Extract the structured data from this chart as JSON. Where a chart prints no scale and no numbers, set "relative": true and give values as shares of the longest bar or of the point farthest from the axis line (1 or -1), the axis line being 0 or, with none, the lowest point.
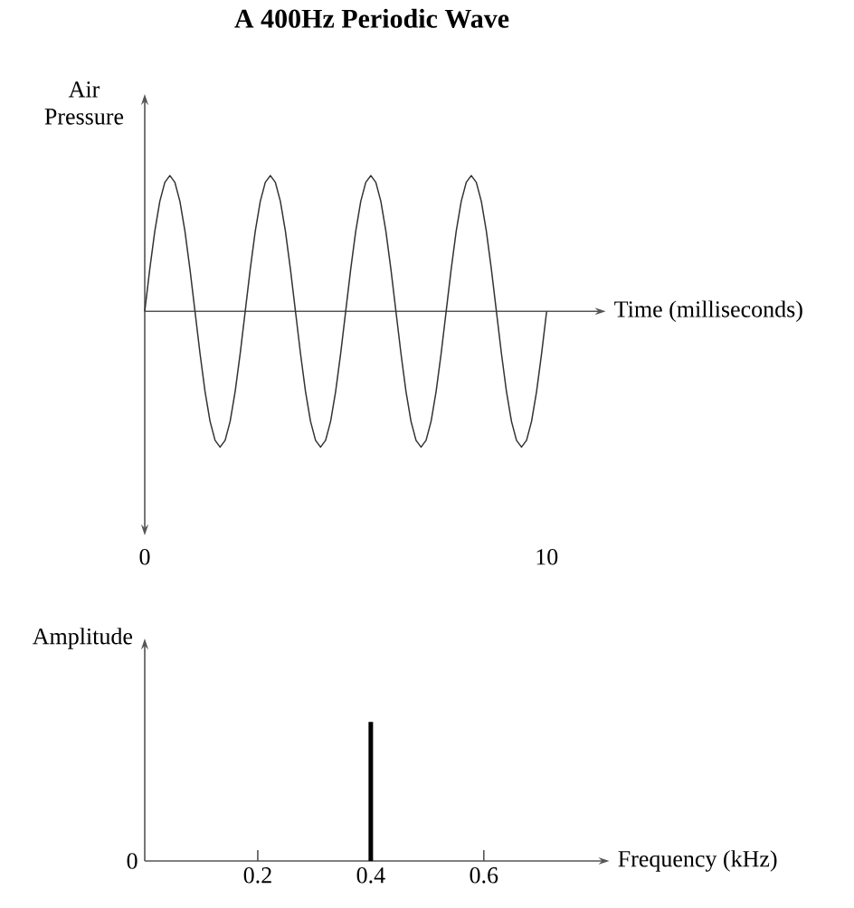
{
  "chart_data": [
    {
      "type": "line",
      "title": "A 400Hz Periodic Wave",
      "xlabel": "Time (milliseconds)",
      "ylabel": "Air Pressure",
      "relative": true,
      "color": "#333333",
      "x": [
        0,
        0.125,
        0.25,
        0.375,
        0.5,
        0.625,
        0.75,
        0.875,
        1,
        1.125,
        1.25,
        1.375,
        1.5,
        1.625,
        1.75,
        1.875,
        2,
        2.125,
        2.25,
        2.375,
        2.5,
        2.625,
        2.75,
        2.875,
        3,
        3.125,
        3.25,
        3.375,
        3.5,
        3.625,
        3.75,
        3.875,
        4,
        4.125,
        4.25,
        4.375,
        4.5,
        4.625,
        4.75,
        4.875,
        5,
        5.125,
        5.25,
        5.375,
        5.5,
        5.625,
        5.75,
        5.875,
        6,
        6.125,
        6.25,
        6.375,
        6.5,
        6.625,
        6.75,
        6.875,
        7,
        7.125,
        7.25,
        7.375,
        7.5,
        7.625,
        7.75,
        7.875,
        8,
        8.125,
        8.25,
        8.375,
        8.5,
        8.625,
        8.75,
        8.875,
        9,
        9.125,
        9.25,
        9.375,
        9.5,
        9.625,
        9.75,
        9.875,
        10
      ],
      "values": [
        0,
        0.31,
        0.59,
        0.81,
        0.95,
        1,
        0.95,
        0.81,
        0.59,
        0.31,
        0,
        -0.31,
        -0.59,
        -0.81,
        -0.95,
        -1,
        -0.95,
        -0.81,
        -0.59,
        -0.31,
        0,
        0.31,
        0.59,
        0.81,
        0.95,
        1,
        0.95,
        0.81,
        0.59,
        0.31,
        0,
        -0.31,
        -0.59,
        -0.81,
        -0.95,
        -1,
        -0.95,
        -0.81,
        -0.59,
        -0.31,
        0,
        0.31,
        0.59,
        0.81,
        0.95,
        1,
        0.95,
        0.81,
        0.59,
        0.31,
        0,
        -0.31,
        -0.59,
        -0.81,
        -0.95,
        -1,
        -0.95,
        -0.81,
        -0.59,
        -0.31,
        0,
        0.31,
        0.59,
        0.81,
        0.95,
        1,
        0.95,
        0.81,
        0.59,
        0.31,
        0,
        -0.31,
        -0.59,
        -0.81,
        -0.95,
        -1,
        -0.95,
        -0.81,
        -0.59,
        -0.31,
        0
      ],
      "xlim": [
        0,
        11.3
      ],
      "xticks": [
        0,
        10
      ]
    },
    {
      "type": "bar",
      "xlabel": "Frequency (kHz)",
      "ylabel": "Amplitude",
      "relative": true,
      "color": "#000000",
      "x": [
        0.4
      ],
      "values": [
        1
      ],
      "xlim": [
        0,
        0.81
      ],
      "xticks": [
        0.2,
        0.4,
        0.6
      ],
      "annotations": [
        "0"
      ]
    }
  ]
}
